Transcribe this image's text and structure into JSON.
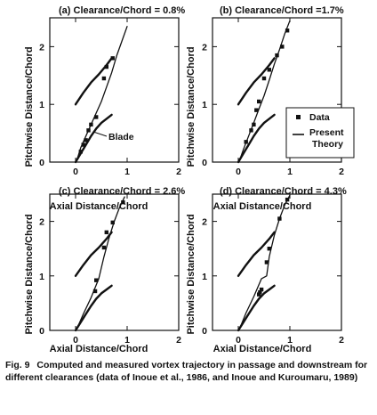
{
  "figure": {
    "x_label": "Axial Distance/Chord",
    "y_label": "Pitchwise Distance/Chord",
    "blade_label": "Blade",
    "legend": {
      "data": "Data",
      "theory_line1": "Present",
      "theory_line2": "Theory"
    },
    "caption": {
      "number": "Fig. 9",
      "text": "Computed and measured vortex trajectory in passage and downstream for different clearances (data of Inoue et al., 1986, and Inoue and Kuroumaru, 1989)"
    }
  },
  "chart_data": [
    {
      "type": "scatter",
      "title": "(a) Clearance/Chord = 0.8%",
      "xlim": [
        -0.5,
        2
      ],
      "ylim": [
        0,
        2.5
      ],
      "x_ticks": [
        "0",
        "1",
        "2"
      ],
      "y_ticks": [
        "0",
        "1",
        "2"
      ],
      "data_points": {
        "name": "Data",
        "x": [
          0.1,
          0.15,
          0.2,
          0.25,
          0.3,
          0.4,
          0.55,
          0.6,
          0.72
        ],
        "y": [
          0.18,
          0.3,
          0.38,
          0.55,
          0.65,
          0.78,
          1.45,
          1.65,
          1.8
        ]
      },
      "theory": {
        "name": "Present Theory",
        "x": [
          0.02,
          0.1,
          0.2,
          0.3,
          0.4,
          0.5,
          0.6,
          0.7,
          0.8,
          0.9,
          1.0
        ],
        "y": [
          0.02,
          0.25,
          0.45,
          0.65,
          0.85,
          1.05,
          1.3,
          1.55,
          1.85,
          2.1,
          2.35
        ]
      },
      "blade_upper": {
        "x": [
          0.0,
          0.15,
          0.3,
          0.45,
          0.6,
          0.7
        ],
        "y": [
          1.0,
          1.2,
          1.38,
          1.52,
          1.68,
          1.8
        ]
      },
      "blade_lower": {
        "x": [
          0.0,
          0.1,
          0.2,
          0.3,
          0.4,
          0.5,
          0.6,
          0.7
        ],
        "y": [
          0.0,
          0.15,
          0.3,
          0.45,
          0.58,
          0.68,
          0.75,
          0.82
        ]
      }
    },
    {
      "type": "scatter",
      "title": "(b) Clearance/Chord =1.7%",
      "xlim": [
        -0.5,
        2
      ],
      "ylim": [
        0,
        2.5
      ],
      "x_ticks": [
        "0",
        "1",
        "2"
      ],
      "y_ticks": [
        "0",
        "1",
        "2"
      ],
      "data_points": {
        "name": "Data",
        "x": [
          0.15,
          0.25,
          0.3,
          0.35,
          0.4,
          0.5,
          0.6,
          0.75,
          0.85,
          0.95
        ],
        "y": [
          0.35,
          0.55,
          0.65,
          0.9,
          1.05,
          1.45,
          1.6,
          1.85,
          2.0,
          2.28
        ]
      },
      "theory": {
        "name": "Present Theory",
        "x": [
          0.02,
          0.1,
          0.2,
          0.3,
          0.4,
          0.5,
          0.6,
          0.7,
          0.8,
          0.9,
          1.0
        ],
        "y": [
          0.02,
          0.22,
          0.45,
          0.68,
          0.92,
          1.15,
          1.42,
          1.7,
          1.95,
          2.22,
          2.45
        ]
      },
      "blade_upper": {
        "x": [
          0.0,
          0.15,
          0.3,
          0.45,
          0.6,
          0.7
        ],
        "y": [
          1.0,
          1.2,
          1.38,
          1.52,
          1.68,
          1.8
        ]
      },
      "blade_lower": {
        "x": [
          0.0,
          0.1,
          0.2,
          0.3,
          0.4,
          0.5,
          0.6,
          0.7
        ],
        "y": [
          0.0,
          0.15,
          0.3,
          0.45,
          0.58,
          0.68,
          0.75,
          0.82
        ]
      }
    },
    {
      "type": "scatter",
      "title": "(c) Clearance/Chord = 2.6%",
      "xlim": [
        -0.5,
        2
      ],
      "ylim": [
        0,
        2.5
      ],
      "x_ticks": [
        "0",
        "1",
        "2"
      ],
      "y_ticks": [
        "0",
        "1",
        "2"
      ],
      "data_points": {
        "name": "Data",
        "x": [
          0.38,
          0.4,
          0.55,
          0.6,
          0.72,
          0.92
        ],
        "y": [
          0.72,
          0.92,
          1.52,
          1.8,
          1.98,
          2.35
        ]
      },
      "theory": {
        "name": "Present Theory",
        "x": [
          0.02,
          0.15,
          0.3,
          0.45,
          0.55,
          0.65,
          0.75,
          0.85,
          0.95
        ],
        "y": [
          0.02,
          0.3,
          0.6,
          0.95,
          1.35,
          1.7,
          2.0,
          2.25,
          2.45
        ]
      },
      "blade_upper": {
        "x": [
          0.0,
          0.15,
          0.3,
          0.45,
          0.6,
          0.7
        ],
        "y": [
          1.0,
          1.2,
          1.38,
          1.52,
          1.68,
          1.8
        ]
      },
      "blade_lower": {
        "x": [
          0.0,
          0.1,
          0.2,
          0.3,
          0.4,
          0.5,
          0.6,
          0.7
        ],
        "y": [
          0.0,
          0.15,
          0.3,
          0.45,
          0.58,
          0.68,
          0.75,
          0.82
        ]
      }
    },
    {
      "type": "scatter",
      "title": "(d) Clearance/Chord = 4.3%",
      "xlim": [
        -0.5,
        2
      ],
      "ylim": [
        0,
        2.5
      ],
      "x_ticks": [
        "0",
        "1",
        "2"
      ],
      "y_ticks": [
        "0",
        "1",
        "2"
      ],
      "data_points": {
        "name": "Data",
        "x": [
          0.4,
          0.42,
          0.45,
          0.55,
          0.6,
          0.8,
          0.95
        ],
        "y": [
          0.66,
          0.7,
          0.75,
          1.25,
          1.5,
          2.05,
          2.4
        ]
      },
      "theory": {
        "name": "Present Theory",
        "x": [
          0.02,
          0.15,
          0.3,
          0.45,
          0.55,
          0.6,
          0.7,
          0.8,
          0.9,
          1.0
        ],
        "y": [
          0.02,
          0.32,
          0.62,
          0.95,
          1.0,
          1.35,
          1.75,
          2.05,
          2.3,
          2.48
        ]
      },
      "blade_upper": {
        "x": [
          0.0,
          0.15,
          0.3,
          0.45,
          0.6,
          0.7
        ],
        "y": [
          1.0,
          1.2,
          1.38,
          1.52,
          1.68,
          1.8
        ]
      },
      "blade_lower": {
        "x": [
          0.0,
          0.1,
          0.2,
          0.3,
          0.4,
          0.5,
          0.6,
          0.7
        ],
        "y": [
          0.0,
          0.15,
          0.3,
          0.45,
          0.58,
          0.68,
          0.75,
          0.82
        ]
      }
    }
  ]
}
